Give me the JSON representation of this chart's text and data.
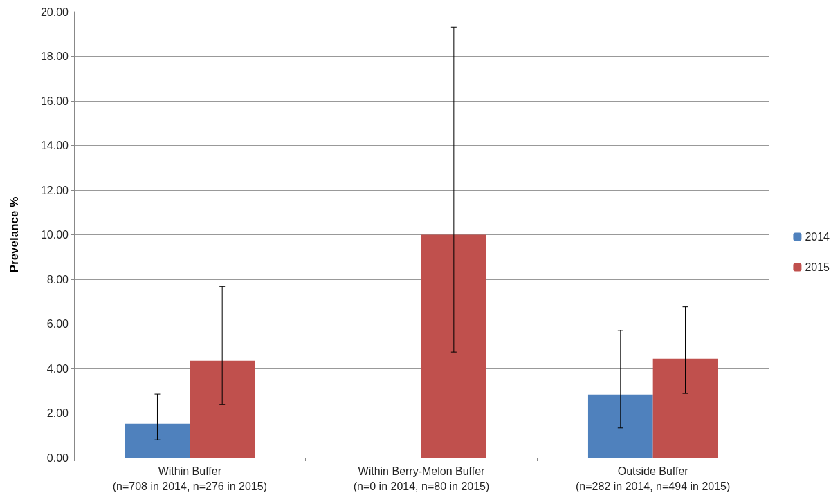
{
  "chart_data": {
    "type": "bar",
    "ylabel": "Prevelance %",
    "categories": [
      "Within Buffer\n(n=708 in 2014, n=276 in 2015)",
      "Within Berry-Melon Buffer\n(n=0 in 2014, n=80 in 2015)",
      "Outside Buffer\n(n=282 in 2014, n=494 in 2015)"
    ],
    "series": [
      {
        "name": "2014",
        "color": "#4f81bd",
        "values": [
          1.53,
          null,
          2.83
        ],
        "errors": [
          [
            0.8,
            2.85
          ],
          null,
          [
            1.34,
            5.71
          ]
        ]
      },
      {
        "name": "2015",
        "color": "#c0504d",
        "values": [
          4.35,
          10.0,
          4.44
        ],
        "errors": [
          [
            2.38,
            7.68
          ],
          [
            4.74,
            19.31
          ],
          [
            2.88,
            6.77
          ]
        ]
      }
    ],
    "ylim": [
      0,
      20
    ],
    "yticks": [
      {
        "value": 0,
        "label": "0.00"
      },
      {
        "value": 2,
        "label": "2.00"
      },
      {
        "value": 4,
        "label": "4.00"
      },
      {
        "value": 6,
        "label": "6.00"
      },
      {
        "value": 8,
        "label": "8.00"
      },
      {
        "value": 10,
        "label": "10.00"
      },
      {
        "value": 12,
        "label": "12.00"
      },
      {
        "value": 14,
        "label": "14.00"
      },
      {
        "value": 16,
        "label": "16.00"
      },
      {
        "value": 18,
        "label": "18.00"
      },
      {
        "value": 20,
        "label": "20.00"
      }
    ],
    "grid": "y",
    "legend": "right"
  }
}
